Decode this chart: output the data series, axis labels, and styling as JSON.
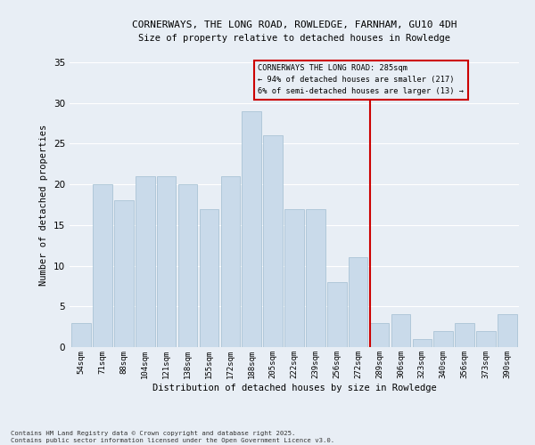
{
  "title_line1": "CORNERWAYS, THE LONG ROAD, ROWLEDGE, FARNHAM, GU10 4DH",
  "title_line2": "Size of property relative to detached houses in Rowledge",
  "xlabel": "Distribution of detached houses by size in Rowledge",
  "ylabel": "Number of detached properties",
  "categories": [
    "54sqm",
    "71sqm",
    "88sqm",
    "104sqm",
    "121sqm",
    "138sqm",
    "155sqm",
    "172sqm",
    "188sqm",
    "205sqm",
    "222sqm",
    "239sqm",
    "256sqm",
    "272sqm",
    "289sqm",
    "306sqm",
    "323sqm",
    "340sqm",
    "356sqm",
    "373sqm",
    "390sqm"
  ],
  "values": [
    3,
    20,
    18,
    21,
    21,
    20,
    17,
    21,
    29,
    26,
    17,
    17,
    8,
    11,
    3,
    4,
    1,
    2,
    3,
    2,
    4
  ],
  "bar_color": "#c9daea",
  "bar_edge_color": "#a0bdd0",
  "annotation_line1": "CORNERWAYS THE LONG ROAD: 285sqm",
  "annotation_line2": "← 94% of detached houses are smaller (217)",
  "annotation_line3": "6% of semi-detached houses are larger (13) →",
  "ylim": [
    0,
    35
  ],
  "yticks": [
    0,
    5,
    10,
    15,
    20,
    25,
    30,
    35
  ],
  "background_color": "#e8eef5",
  "grid_color": "#ffffff",
  "red_line_color": "#cc0000",
  "footer_line1": "Contains HM Land Registry data © Crown copyright and database right 2025.",
  "footer_line2": "Contains public sector information licensed under the Open Government Licence v3.0."
}
